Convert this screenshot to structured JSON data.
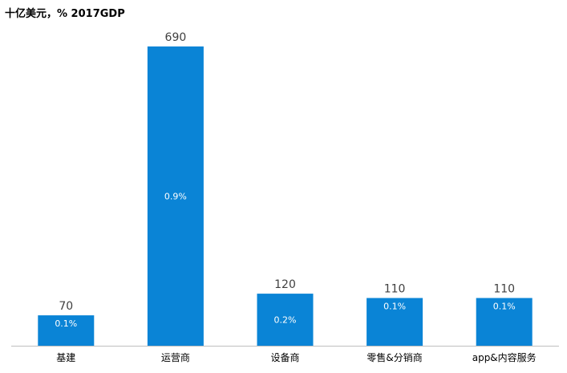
{
  "chart_title": "十亿美元，% 2017GDP",
  "colors": {
    "bar": "#0a84d6",
    "axis": "#bfbfbf",
    "value_label": "#404040",
    "inner_label": "#ffffff",
    "category_label": "#000000"
  },
  "chart_data": {
    "type": "bar",
    "title": "十亿美元，% 2017GDP",
    "categories": [
      "基建",
      "运营商",
      "设备商",
      "零售&分销商",
      "app&内容服务"
    ],
    "values": [
      70,
      690,
      120,
      110,
      110
    ],
    "gdp_share_labels": [
      "0.1%",
      "0.9%",
      "0.2%",
      "0.1%",
      "0.1%"
    ],
    "xlabel": "",
    "ylabel": "",
    "ylim": [
      0,
      760
    ],
    "grid": false,
    "legend": "none"
  }
}
